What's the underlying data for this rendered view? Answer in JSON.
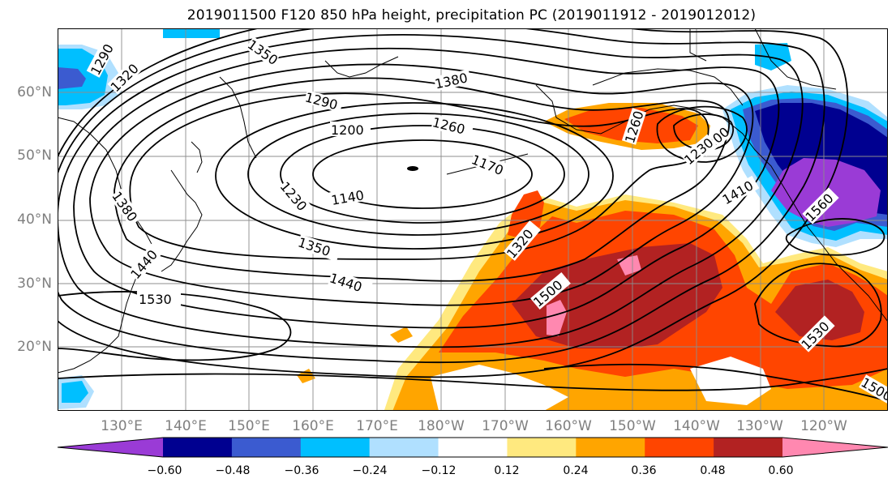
{
  "title": "2019011500 F120 850 hPa height, precipitation PC (2019011912 - 2019012012)",
  "lat_labels": [
    "60°N",
    "50°N",
    "40°N",
    "30°N",
    "20°N"
  ],
  "lon_labels": [
    "130°E",
    "140°E",
    "150°E",
    "160°E",
    "170°E",
    "180°W",
    "170°W",
    "160°W",
    "150°W",
    "140°W",
    "130°W",
    "120°W"
  ],
  "colorbar": {
    "colors": [
      "#9a3bd6",
      "#000090",
      "#3b5bd0",
      "#00bfff",
      "#b0e0ff",
      "#ffffff",
      "#ffe97f",
      "#ffa500",
      "#ff4500",
      "#b22222",
      "#ff88b0"
    ],
    "tick_labels": [
      "−0.60",
      "−0.48",
      "−0.36",
      "−0.24",
      "−0.12",
      "0.12",
      "0.24",
      "0.36",
      "0.48",
      "0.60"
    ]
  },
  "contour_labels": [
    "1290",
    "1320",
    "1350",
    "1380",
    "1290",
    "1200",
    "1260",
    "1170",
    "1140",
    "1230",
    "1260",
    "1200",
    "1230",
    "1380",
    "1410",
    "1560",
    "1320",
    "1350",
    "1440",
    "1500",
    "1530",
    "1530",
    "1440",
    "1500"
  ]
}
